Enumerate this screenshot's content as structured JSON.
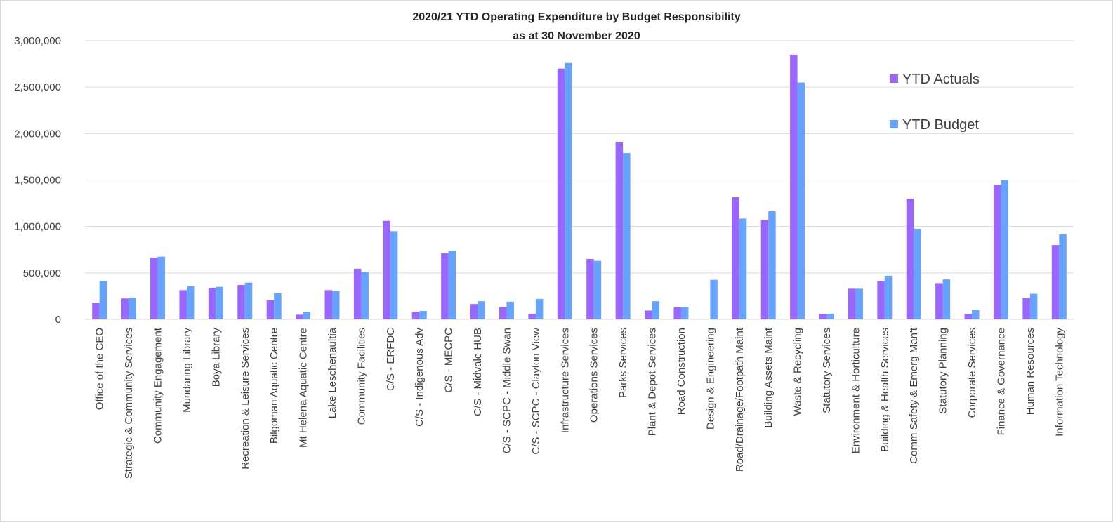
{
  "chart_data": {
    "type": "bar",
    "title": "2020/21 YTD Operating Expenditure by Budget Responsibility",
    "subtitle": "as at 30 November 2020",
    "xlabel": "",
    "ylabel": "",
    "ylim": [
      0,
      3000000
    ],
    "yticks": [
      0,
      500000,
      1000000,
      1500000,
      2000000,
      2500000,
      3000000
    ],
    "ytick_labels": [
      "0",
      "500,000",
      "1,000,000",
      "1,500,000",
      "2,000,000",
      "2,500,000",
      "3,000,000"
    ],
    "grid": true,
    "legend_position": "top-right",
    "categories": [
      "Office of the CEO",
      "Strategic & Community Services",
      "Community Engagement",
      "Mundaring Library",
      "Boya Library",
      "Recreation & Leisure Services",
      "Bilgoman Aquatic Centre",
      "Mt Helena Aquatic Centre",
      "Lake Leschenaultia",
      "Community Facilities",
      "C/S - ERFDC",
      "C/S - Indigenous Adv",
      "C/S - MECPC",
      "C/S - Midvale HUB",
      "C/S - SCPC - Middle Swan",
      "C/S - SCPC - Clayton View",
      "Infrastructure Services",
      "Operations Services",
      "Parks Services",
      "Plant & Depot Services",
      "Road Construction",
      "Design & Engineering",
      "Road/Drainage/Footpath Maint",
      "Building Assets Maint",
      "Waste & Recycling",
      "Statutory Services",
      "Environment & Horticulture",
      "Building & Health Services",
      "Comm Safety & Emerg Man't",
      "Statutory Planning",
      "Corporate Services",
      "Finance & Governance",
      "Human Resources",
      "Information Technology"
    ],
    "series": [
      {
        "name": "YTD Actuals",
        "color": "#9966ff",
        "values": [
          180000,
          225000,
          665000,
          315000,
          340000,
          370000,
          205000,
          50000,
          315000,
          545000,
          1060000,
          80000,
          710000,
          165000,
          130000,
          60000,
          2700000,
          650000,
          1910000,
          95000,
          130000,
          0,
          1315000,
          1070000,
          2850000,
          60000,
          330000,
          415000,
          1300000,
          390000,
          60000,
          1450000,
          230000,
          800000
        ]
      },
      {
        "name": "YTD Budget",
        "color": "#66a3ff",
        "values": [
          415000,
          235000,
          675000,
          355000,
          350000,
          395000,
          280000,
          80000,
          305000,
          510000,
          950000,
          90000,
          740000,
          195000,
          190000,
          220000,
          2760000,
          630000,
          1790000,
          195000,
          130000,
          425000,
          1085000,
          1165000,
          2550000,
          60000,
          330000,
          470000,
          975000,
          430000,
          100000,
          1500000,
          275000,
          915000
        ]
      }
    ]
  }
}
